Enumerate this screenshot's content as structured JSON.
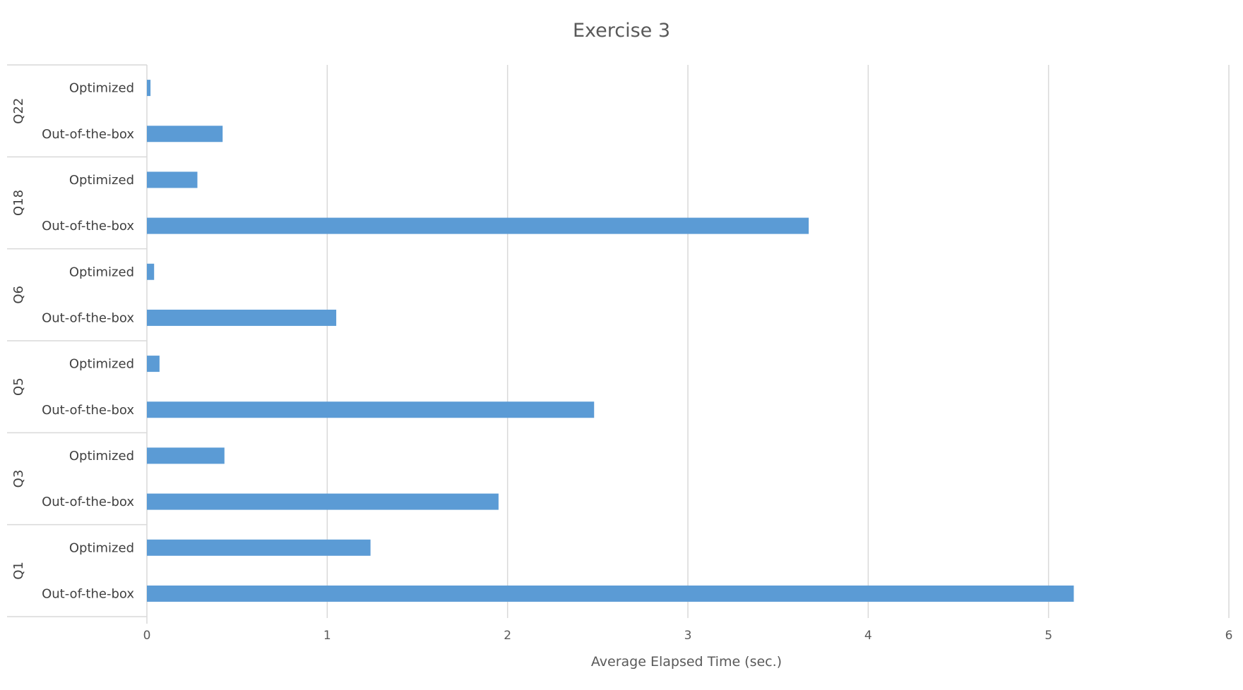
{
  "chart_data": {
    "type": "bar",
    "orientation": "horizontal",
    "title": "Exercise 3",
    "xlabel": "Average Elapsed Time (sec.)",
    "ylabel": "",
    "xlim": [
      0,
      6
    ],
    "xticks": [
      "0",
      "1",
      "2",
      "3",
      "4",
      "5",
      "6"
    ],
    "grid": true,
    "bar_color": "#5b9bd5",
    "groups": [
      {
        "name": "Q22",
        "items": [
          {
            "label": "Optimized",
            "value": 0.02
          },
          {
            "label": "Out-of-the-box",
            "value": 0.42
          }
        ]
      },
      {
        "name": "Q18",
        "items": [
          {
            "label": "Optimized",
            "value": 0.28
          },
          {
            "label": "Out-of-the-box",
            "value": 3.67
          }
        ]
      },
      {
        "name": "Q6",
        "items": [
          {
            "label": "Optimized",
            "value": 0.04
          },
          {
            "label": "Out-of-the-box",
            "value": 1.05
          }
        ]
      },
      {
        "name": "Q5",
        "items": [
          {
            "label": "Optimized",
            "value": 0.07
          },
          {
            "label": "Out-of-the-box",
            "value": 2.48
          }
        ]
      },
      {
        "name": "Q3",
        "items": [
          {
            "label": "Optimized",
            "value": 0.43
          },
          {
            "label": "Out-of-the-box",
            "value": 1.95
          }
        ]
      },
      {
        "name": "Q1",
        "items": [
          {
            "label": "Optimized",
            "value": 1.24
          },
          {
            "label": "Out-of-the-box",
            "value": 5.14
          }
        ]
      }
    ]
  }
}
